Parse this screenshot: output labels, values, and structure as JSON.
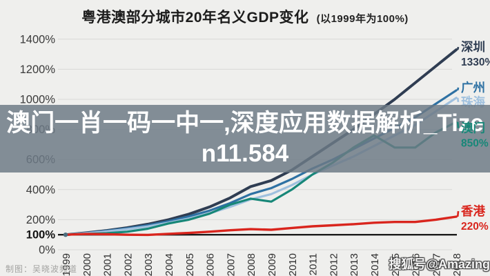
{
  "title": {
    "main": "粤港澳部分城市20年名义GDP变化",
    "subtitle": "(以1999年为100%)"
  },
  "overlay": {
    "text": "澳门一肖一码一中一,深度应用数据解析_Tizen11.584",
    "band_color": "rgba(109,122,134,0.84)",
    "text_color": "#ffffff"
  },
  "credit": "制图：吴晓波频道",
  "watermark": "搜狐号@Amazing",
  "chart_data": {
    "type": "line",
    "title": "粤港澳部分城市20年名义GDP变化 (以1999年为100%)",
    "xlabel": "",
    "ylabel": "",
    "ylabel_suffix": "%",
    "ylim": [
      0,
      1450
    ],
    "grid": true,
    "legend_position": "right-end-labels",
    "baseline_value": 100,
    "y_ticks": [
      1400,
      1200,
      1000,
      800,
      600,
      400,
      200,
      100,
      0
    ],
    "x": [
      1999,
      2000,
      2001,
      2002,
      2003,
      2004,
      2005,
      2006,
      2007,
      2008,
      2009,
      2010,
      2011,
      2012,
      2013,
      2014,
      2015,
      2016,
      2017,
      2018
    ],
    "series": [
      {
        "key": "shenzhen",
        "name": "深圳",
        "color": "#2f3d52",
        "stroke_width": 4,
        "end_value_label": "1330%",
        "label_dy": -4,
        "top_layer": false,
        "values": [
          100,
          113,
          128,
          147,
          170,
          200,
          237,
          285,
          345,
          420,
          460,
          530,
          620,
          710,
          800,
          900,
          1000,
          1110,
          1220,
          1330
        ]
      },
      {
        "key": "guangzhou",
        "name": "广州",
        "color": "#2e71a3",
        "stroke_width": 3.2,
        "end_value_label": "",
        "label_dy": -4,
        "top_layer": false,
        "values": [
          100,
          112,
          126,
          143,
          163,
          190,
          222,
          260,
          310,
          370,
          410,
          470,
          540,
          600,
          670,
          740,
          810,
          880,
          970,
          1060
        ]
      },
      {
        "key": "zhuhai",
        "name": "珠海",
        "color": "#9fc0de",
        "stroke_width": 3.2,
        "end_value_label": "",
        "label_dy": 6,
        "top_layer": false,
        "values": [
          100,
          110,
          122,
          137,
          155,
          180,
          208,
          242,
          285,
          335,
          370,
          430,
          500,
          560,
          620,
          690,
          760,
          830,
          920,
          1010
        ]
      },
      {
        "key": "macau",
        "name": "澳门",
        "color": "#178778",
        "stroke_width": 3.2,
        "end_value_label": "850%",
        "label_dy": 9,
        "top_layer": true,
        "values": [
          100,
          105,
          110,
          120,
          140,
          175,
          200,
          240,
          300,
          340,
          320,
          400,
          500,
          580,
          680,
          760,
          680,
          680,
          780,
          850
        ]
      },
      {
        "key": "hongkong",
        "name": "香港",
        "color": "#d9251d",
        "stroke_width": 3.4,
        "end_value_label": "220%",
        "label_dy": -8,
        "top_layer": false,
        "values": [
          100,
          105,
          103,
          100,
          99,
          106,
          112,
          120,
          130,
          137,
          133,
          145,
          156,
          163,
          170,
          180,
          185,
          185,
          200,
          220
        ]
      }
    ],
    "style": {
      "background": "#efefed",
      "gridline_color": "#d8d8d6",
      "baseline_color": "#1a1a1a",
      "tick_label_color": "#3a3a3a",
      "start_dot_color": "#4d6e7e"
    }
  }
}
